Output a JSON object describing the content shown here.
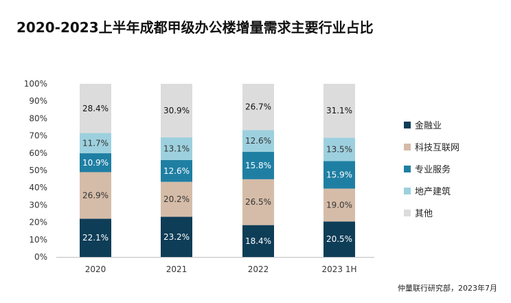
{
  "title": "2020-2023上半年成都甲级办公楼增量需求主要行业占比",
  "source": "仲量联行研究部，2023年7月",
  "chart_data": {
    "type": "bar",
    "stacked": true,
    "title": "2020-2023上半年成都甲级办公楼增量需求主要行业占比",
    "xlabel": "",
    "ylabel": "",
    "ylim": [
      0,
      100
    ],
    "y_ticks": [
      "0%",
      "10%",
      "20%",
      "30%",
      "40%",
      "50%",
      "60%",
      "70%",
      "80%",
      "90%",
      "100%"
    ],
    "categories": [
      "2020",
      "2021",
      "2022",
      "2023 1H"
    ],
    "grid": false,
    "legend": "right",
    "series": [
      {
        "name": "金融业",
        "color": "#0e3d57",
        "values": [
          22.1,
          23.2,
          18.4,
          20.5
        ],
        "labels": [
          "22.1%",
          "23.2%",
          "18.4%",
          "20.5%"
        ],
        "label_color": "#ffffff"
      },
      {
        "name": "科技互联网",
        "color": "#d5bca8",
        "values": [
          26.9,
          20.2,
          26.5,
          19.0
        ],
        "labels": [
          "26.9%",
          "20.2%",
          "26.5%",
          "19.0%"
        ],
        "label_color": "#333333"
      },
      {
        "name": "专业服务",
        "color": "#1f7fa3",
        "values": [
          10.9,
          12.6,
          15.8,
          15.9
        ],
        "labels": [
          "10.9%",
          "12.6%",
          "15.8%",
          "15.9%"
        ],
        "label_color": "#ffffff"
      },
      {
        "name": "地产建筑",
        "color": "#9dd0de",
        "values": [
          11.7,
          13.1,
          12.6,
          13.5
        ],
        "labels": [
          "11.7%",
          "13.1%",
          "12.6%",
          "13.5%"
        ],
        "label_color": "#333333"
      },
      {
        "name": "其他",
        "color": "#dcdcdc",
        "values": [
          28.4,
          30.9,
          26.7,
          31.1
        ],
        "labels": [
          "28.4%",
          "30.9%",
          "26.7%",
          "31.1%"
        ],
        "label_color": "#111111"
      }
    ]
  }
}
